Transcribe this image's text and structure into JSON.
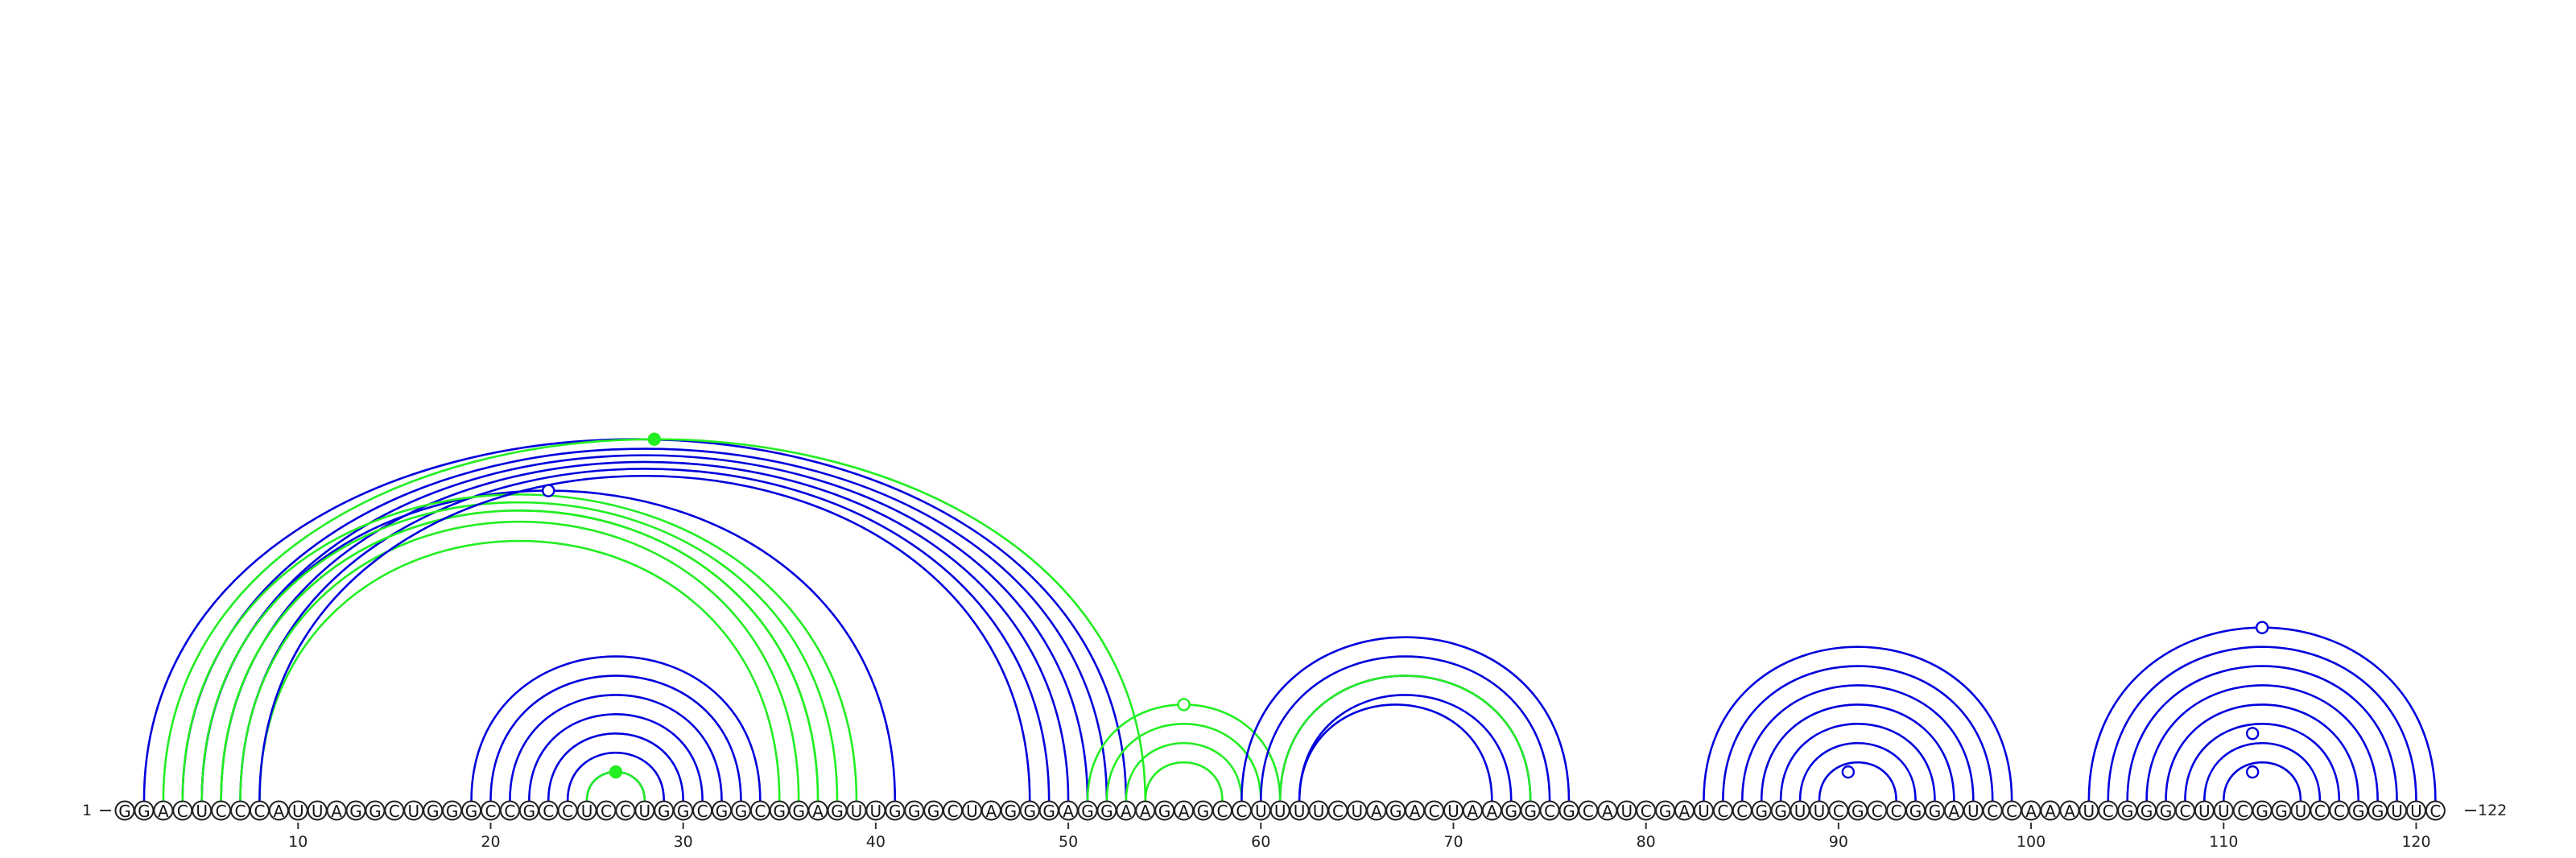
{
  "sequence": "GGACUCCCAUUAGGCUGGGCCGCCUCCUGGCGGCGGAGUUGGGCUAGGGAGGAAGAGCCUUUUCUAGACUAAGGCGCAUCGAUCCGGUUCGCCGGAUCCAAAUCGGGCUUCGGUCCGGUUC",
  "start_label": "1",
  "end_label": "122",
  "tick_values": [
    10,
    20,
    30,
    40,
    50,
    60,
    70,
    80,
    90,
    100,
    110,
    120
  ],
  "colors": {
    "blue": "#0000dd",
    "green": "#22ee22"
  },
  "arc_groups": [
    {
      "color": "blue",
      "outer_i": 2,
      "outer_j": 53,
      "count": 1
    },
    {
      "color": "green",
      "outer_i": 3,
      "outer_j": 54,
      "count": 1
    },
    {
      "color": "blue",
      "outer_i": 4,
      "outer_j": 52,
      "count": 4
    },
    {
      "color": "blue",
      "outer_i": 5,
      "outer_j": 41,
      "count": 1
    },
    {
      "color": "green",
      "outer_i": 4,
      "outer_j": 39,
      "count": 3
    },
    {
      "color": "green",
      "outer_i": 6,
      "outer_j": 37,
      "count": 3
    },
    {
      "color": "blue",
      "outer_i": 8,
      "outer_j": 48,
      "count": 1
    },
    {
      "color": "blue",
      "outer_i": 19,
      "outer_j": 34,
      "count": 8
    },
    {
      "color": "green",
      "outer_i": 25,
      "outer_j": 28,
      "count": 1
    },
    {
      "color": "green",
      "outer_i": 51,
      "outer_j": 61,
      "count": 4
    },
    {
      "color": "blue",
      "outer_i": 59,
      "outer_j": 76,
      "count": 4
    },
    {
      "color": "green",
      "outer_i": 61,
      "outer_j": 74,
      "count": 1
    },
    {
      "color": "blue",
      "outer_i": 62,
      "outer_j": 72,
      "count": 1
    },
    {
      "color": "blue",
      "outer_i": 83,
      "outer_j": 99,
      "count": 7
    },
    {
      "color": "blue",
      "outer_i": 103,
      "outer_j": 121,
      "count": 8
    }
  ],
  "markers": [
    {
      "color": "green",
      "filled": true,
      "i": 3,
      "j": 54
    },
    {
      "color": "blue",
      "filled": false,
      "i": 5,
      "j": 41
    },
    {
      "color": "green",
      "filled": true,
      "i": 25,
      "j": 28
    },
    {
      "color": "green",
      "filled": false,
      "i": 51,
      "j": 61
    },
    {
      "color": "blue",
      "filled": false,
      "i": 89,
      "j": 92
    },
    {
      "color": "blue",
      "filled": false,
      "i": 103,
      "j": 121
    },
    {
      "color": "blue",
      "filled": false,
      "i": 108,
      "j": 115
    },
    {
      "color": "blue",
      "filled": false,
      "i": 110,
      "j": 113
    }
  ]
}
